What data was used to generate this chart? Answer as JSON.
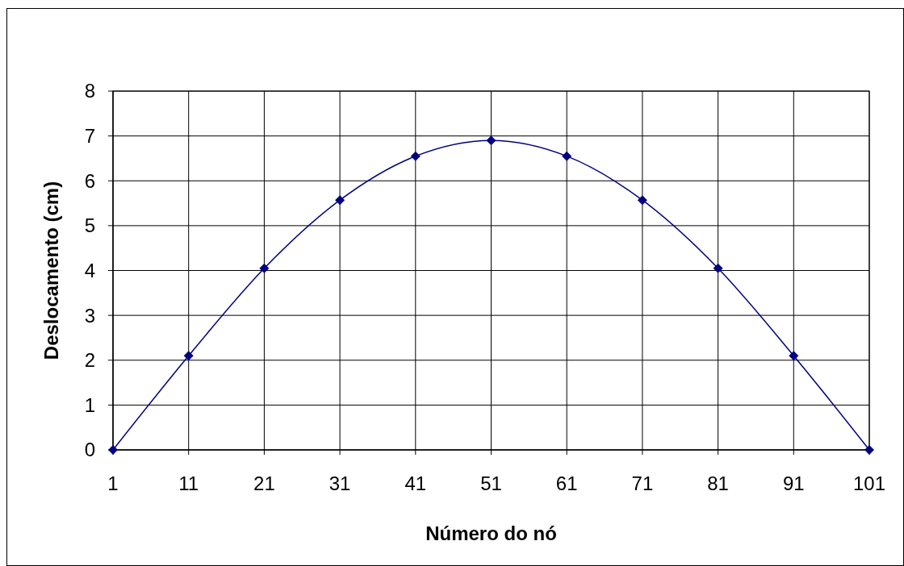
{
  "chart_data": {
    "type": "line",
    "xlabel": "Número do nó",
    "ylabel": "Deslocamento (cm)",
    "x": [
      1,
      11,
      21,
      31,
      41,
      51,
      61,
      71,
      81,
      91,
      101
    ],
    "series": [
      {
        "color": "#000080",
        "values": [
          0,
          2.1,
          4.05,
          5.57,
          6.55,
          6.9,
          6.55,
          5.57,
          4.05,
          2.1,
          0
        ]
      }
    ],
    "xlim": [
      1,
      101
    ],
    "xticks": [
      1,
      11,
      21,
      31,
      41,
      51,
      61,
      71,
      81,
      91,
      101
    ],
    "ylim": [
      0,
      8
    ],
    "yticks": [
      0,
      1,
      2,
      3,
      4,
      5,
      6,
      7,
      8
    ],
    "grid": true,
    "marker": "diamond",
    "line_style": "solid"
  }
}
